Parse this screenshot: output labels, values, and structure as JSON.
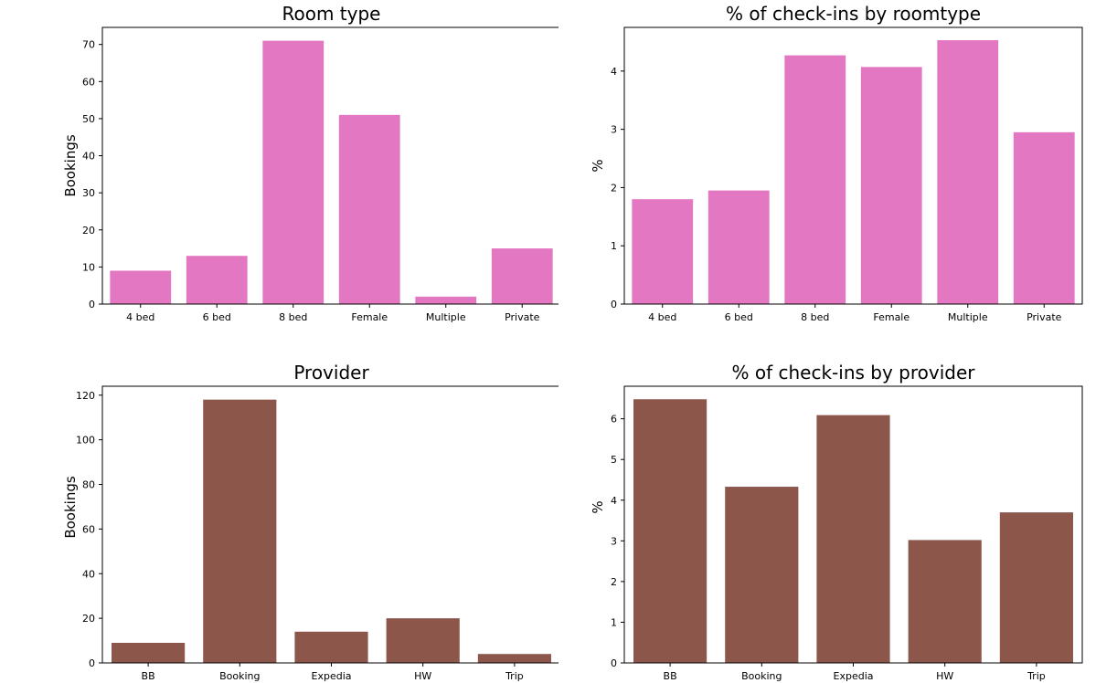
{
  "chart_data": [
    {
      "type": "bar",
      "title": "Room type",
      "xlabel": "",
      "ylabel": "Bookings",
      "categories": [
        "4 bed",
        "6 bed",
        "8 bed",
        "Female",
        "Multiple",
        "Private"
      ],
      "values": [
        9,
        13,
        71,
        51,
        2,
        15
      ],
      "ylim": [
        0,
        74.6
      ],
      "yticks": [
        0,
        10,
        20,
        30,
        40,
        50,
        60,
        70
      ],
      "color": "#e377c2",
      "grid": false
    },
    {
      "type": "bar",
      "title": "% of check-ins by roomtype",
      "xlabel": "",
      "ylabel": "%",
      "categories": [
        "4 bed",
        "6 bed",
        "8 bed",
        "Female",
        "Multiple",
        "Private"
      ],
      "values": [
        1.8,
        1.95,
        4.27,
        4.07,
        4.53,
        2.95
      ],
      "ylim": [
        0,
        4.75
      ],
      "yticks": [
        0,
        1,
        2,
        3,
        4
      ],
      "color": "#e377c2",
      "grid": false
    },
    {
      "type": "bar",
      "title": "Provider",
      "xlabel": "",
      "ylabel": "Bookings",
      "categories": [
        "BB",
        "Booking",
        "Expedia",
        "HW",
        "Trip"
      ],
      "values": [
        9,
        118,
        14,
        20,
        4
      ],
      "ylim": [
        0,
        124
      ],
      "yticks": [
        0,
        20,
        40,
        60,
        80,
        100,
        120
      ],
      "color": "#8c564b",
      "grid": false
    },
    {
      "type": "bar",
      "title": "% of check-ins by provider",
      "xlabel": "",
      "ylabel": "%",
      "categories": [
        "BB",
        "Booking",
        "Expedia",
        "HW",
        "Trip"
      ],
      "values": [
        6.48,
        4.33,
        6.09,
        3.02,
        3.7
      ],
      "ylim": [
        0,
        6.8
      ],
      "yticks": [
        0,
        1,
        2,
        3,
        4,
        5,
        6
      ],
      "color": "#8c564b",
      "grid": false
    }
  ]
}
